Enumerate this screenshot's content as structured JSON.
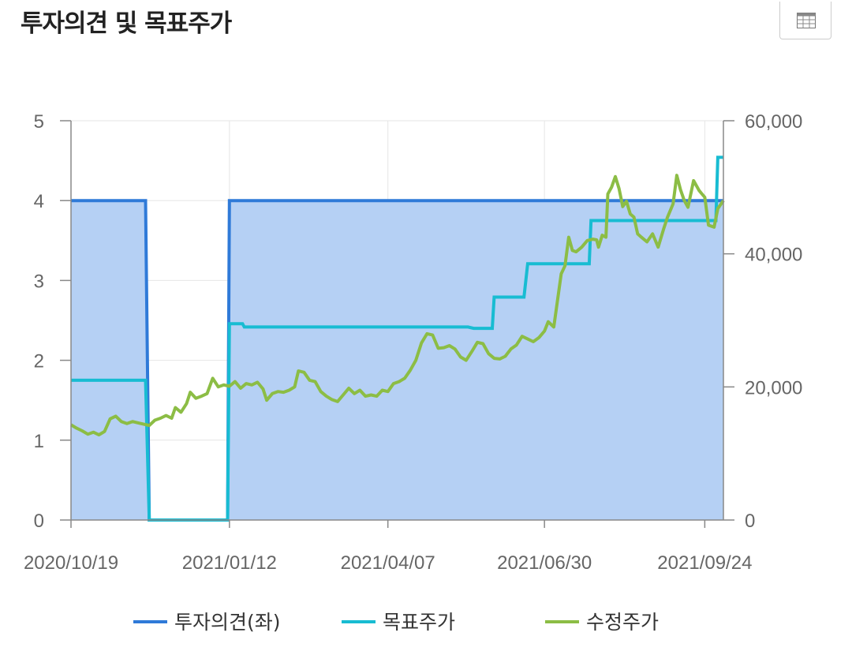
{
  "title": "투자의견 및 목표주가",
  "toolbar": {
    "icon": "table-icon"
  },
  "colors": {
    "opinion": "#2f7ad8",
    "opinion_fill": "#b5d0f4",
    "target": "#18bcd2",
    "price": "#8cbd45",
    "axis": "#888888",
    "grid": "#e6e6e6"
  },
  "chart_data": {
    "type": "line",
    "title": "투자의견 및 목표주가",
    "x_start": "2020/10/19",
    "x_end": "2021/10/04",
    "x_ticks": [
      "2020/10/19",
      "2021/01/12",
      "2021/04/07",
      "2021/06/30",
      "2021/09/24"
    ],
    "y_left": {
      "min": 0,
      "max": 5,
      "ticks": [
        "0",
        "1",
        "2",
        "3",
        "4",
        "5"
      ]
    },
    "y_right": {
      "min": 0,
      "max": 60000,
      "ticks": [
        "0",
        "20,000",
        "40,000",
        "60,000"
      ]
    },
    "grid": true,
    "legend_position": "bottom",
    "series": [
      {
        "name": "투자의견(좌)",
        "axis": "left",
        "kind": "step-area",
        "points": [
          [
            "2020/10/19",
            4
          ],
          [
            "2020/11/28",
            4
          ],
          [
            "2020/11/30",
            0
          ],
          [
            "2021/01/11",
            0
          ],
          [
            "2021/01/12",
            4
          ],
          [
            "2021/10/04",
            4
          ]
        ]
      },
      {
        "name": "목표주가",
        "axis": "right",
        "kind": "step",
        "points": [
          [
            "2020/10/19",
            21000
          ],
          [
            "2020/11/28",
            21000
          ],
          [
            "2020/11/30",
            0
          ],
          [
            "2021/01/11",
            0
          ],
          [
            "2021/01/12",
            29500
          ],
          [
            "2021/01/19",
            29500
          ],
          [
            "2021/01/20",
            29000
          ],
          [
            "2021/05/20",
            29000
          ],
          [
            "2021/05/23",
            28800
          ],
          [
            "2021/06/02",
            28800
          ],
          [
            "2021/06/03",
            33500
          ],
          [
            "2021/06/19",
            33500
          ],
          [
            "2021/06/21",
            38500
          ],
          [
            "2021/07/24",
            38500
          ],
          [
            "2021/07/25",
            45000
          ],
          [
            "2021/09/30",
            45000
          ],
          [
            "2021/10/01",
            54500
          ],
          [
            "2021/10/04",
            54500
          ]
        ]
      },
      {
        "name": "수정주가",
        "axis": "right",
        "kind": "line",
        "points": [
          [
            "2020/10/19",
            14300
          ],
          [
            "2020/10/22",
            13800
          ],
          [
            "2020/10/25",
            13400
          ],
          [
            "2020/10/28",
            12900
          ],
          [
            "2020/10/31",
            13200
          ],
          [
            "2020/11/03",
            12800
          ],
          [
            "2020/11/06",
            13300
          ],
          [
            "2020/11/09",
            15200
          ],
          [
            "2020/11/12",
            15600
          ],
          [
            "2020/11/15",
            14800
          ],
          [
            "2020/11/18",
            14500
          ],
          [
            "2020/11/21",
            14800
          ],
          [
            "2020/11/24",
            14600
          ],
          [
            "2020/11/27",
            14400
          ],
          [
            "2020/11/30",
            14200
          ],
          [
            "2020/12/03",
            15000
          ],
          [
            "2020/12/06",
            15300
          ],
          [
            "2020/12/09",
            15700
          ],
          [
            "2020/12/12",
            15300
          ],
          [
            "2020/12/14",
            16900
          ],
          [
            "2020/12/17",
            16200
          ],
          [
            "2020/12/20",
            17500
          ],
          [
            "2020/12/22",
            19200
          ],
          [
            "2020/12/25",
            18300
          ],
          [
            "2020/12/28",
            18600
          ],
          [
            "2020/12/31",
            19000
          ],
          [
            "2021/01/03",
            21300
          ],
          [
            "2021/01/06",
            20000
          ],
          [
            "2021/01/09",
            20300
          ],
          [
            "2021/01/12",
            20100
          ],
          [
            "2021/01/15",
            20800
          ],
          [
            "2021/01/18",
            19800
          ],
          [
            "2021/01/21",
            20500
          ],
          [
            "2021/01/24",
            20300
          ],
          [
            "2021/01/27",
            20700
          ],
          [
            "2021/01/30",
            19700
          ],
          [
            "2021/02/01",
            18000
          ],
          [
            "2021/02/04",
            19000
          ],
          [
            "2021/02/07",
            19300
          ],
          [
            "2021/02/10",
            19200
          ],
          [
            "2021/02/13",
            19500
          ],
          [
            "2021/02/16",
            20000
          ],
          [
            "2021/02/18",
            22400
          ],
          [
            "2021/02/21",
            22200
          ],
          [
            "2021/02/24",
            21000
          ],
          [
            "2021/02/27",
            20800
          ],
          [
            "2021/03/02",
            19300
          ],
          [
            "2021/03/05",
            18600
          ],
          [
            "2021/03/08",
            18100
          ],
          [
            "2021/03/11",
            17800
          ],
          [
            "2021/03/14",
            18800
          ],
          [
            "2021/03/17",
            19800
          ],
          [
            "2021/03/20",
            19000
          ],
          [
            "2021/03/23",
            19500
          ],
          [
            "2021/03/26",
            18600
          ],
          [
            "2021/03/29",
            18800
          ],
          [
            "2021/04/01",
            18600
          ],
          [
            "2021/04/04",
            19500
          ],
          [
            "2021/04/07",
            19300
          ],
          [
            "2021/04/10",
            20500
          ],
          [
            "2021/04/13",
            20800
          ],
          [
            "2021/04/16",
            21300
          ],
          [
            "2021/04/19",
            22500
          ],
          [
            "2021/04/22",
            24000
          ],
          [
            "2021/04/25",
            26600
          ],
          [
            "2021/04/28",
            28000
          ],
          [
            "2021/05/01",
            27800
          ],
          [
            "2021/05/04",
            25800
          ],
          [
            "2021/05/07",
            25900
          ],
          [
            "2021/05/10",
            26200
          ],
          [
            "2021/05/13",
            25700
          ],
          [
            "2021/05/16",
            24500
          ],
          [
            "2021/05/19",
            24000
          ],
          [
            "2021/05/22",
            25300
          ],
          [
            "2021/05/25",
            26700
          ],
          [
            "2021/05/28",
            26500
          ],
          [
            "2021/05/31",
            25000
          ],
          [
            "2021/06/03",
            24300
          ],
          [
            "2021/06/06",
            24200
          ],
          [
            "2021/06/09",
            24600
          ],
          [
            "2021/06/12",
            25700
          ],
          [
            "2021/06/15",
            26300
          ],
          [
            "2021/06/18",
            27600
          ],
          [
            "2021/06/21",
            27200
          ],
          [
            "2021/06/24",
            26800
          ],
          [
            "2021/06/27",
            27400
          ],
          [
            "2021/06/30",
            28400
          ],
          [
            "2021/07/02",
            29800
          ],
          [
            "2021/07/05",
            29000
          ],
          [
            "2021/07/07",
            33000
          ],
          [
            "2021/07/09",
            37000
          ],
          [
            "2021/07/11",
            38200
          ],
          [
            "2021/07/13",
            42500
          ],
          [
            "2021/07/15",
            40500
          ],
          [
            "2021/07/17",
            40300
          ],
          [
            "2021/07/20",
            41000
          ],
          [
            "2021/07/23",
            42000
          ],
          [
            "2021/07/26",
            42200
          ],
          [
            "2021/07/28",
            42100
          ],
          [
            "2021/07/29",
            41000
          ],
          [
            "2021/07/31",
            42800
          ],
          [
            "2021/08/02",
            42500
          ],
          [
            "2021/08/03",
            49000
          ],
          [
            "2021/08/05",
            50000
          ],
          [
            "2021/08/07",
            51600
          ],
          [
            "2021/08/09",
            49800
          ],
          [
            "2021/08/11",
            47100
          ],
          [
            "2021/08/13",
            47900
          ],
          [
            "2021/08/15",
            46000
          ],
          [
            "2021/08/17",
            45500
          ],
          [
            "2021/08/19",
            43000
          ],
          [
            "2021/08/21",
            42500
          ],
          [
            "2021/08/24",
            41800
          ],
          [
            "2021/08/27",
            43000
          ],
          [
            "2021/08/30",
            41000
          ],
          [
            "2021/09/02",
            43800
          ],
          [
            "2021/09/04",
            45500
          ],
          [
            "2021/09/07",
            47500
          ],
          [
            "2021/09/09",
            51800
          ],
          [
            "2021/09/11",
            49600
          ],
          [
            "2021/09/13",
            48000
          ],
          [
            "2021/09/15",
            47000
          ],
          [
            "2021/09/18",
            51000
          ],
          [
            "2021/09/21",
            49500
          ],
          [
            "2021/09/24",
            48500
          ],
          [
            "2021/09/26",
            44300
          ],
          [
            "2021/09/29",
            44000
          ],
          [
            "2021/10/01",
            46800
          ],
          [
            "2021/10/04",
            48000
          ]
        ]
      }
    ]
  }
}
